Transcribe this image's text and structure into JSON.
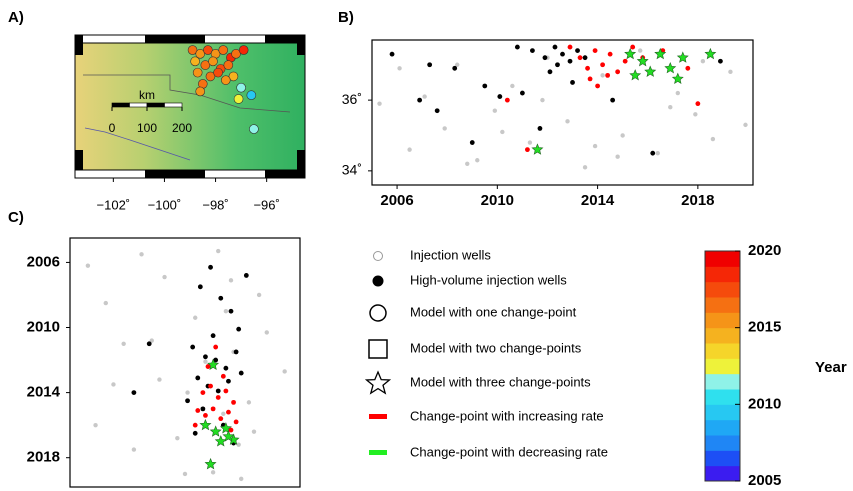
{
  "chart_data": [
    {
      "type": "map",
      "panel": "A)",
      "xlim": [
        -103.5,
        -94.5
      ],
      "ylim": [
        33.5,
        37.3
      ],
      "xticks": [
        {
          "value": -102,
          "label": "−102˚"
        },
        {
          "value": -100,
          "label": "−100˚"
        },
        {
          "value": -98,
          "label": "−98˚"
        },
        {
          "value": -96,
          "label": "−96˚"
        }
      ],
      "scale_label": "km",
      "scale_ticks": [
        0,
        100,
        200
      ],
      "points": {
        "x": [
          -98.9,
          -98.6,
          -98.3,
          -98.0,
          -97.7,
          -97.4,
          -97.2,
          -98.8,
          -98.4,
          -98.1,
          -97.8,
          -97.5,
          -98.7,
          -98.2,
          -97.9,
          -97.3,
          -98.5,
          -97.6,
          -96.9,
          -97.0,
          -96.6,
          -97.1,
          -98.6,
          -96.5
        ],
        "y": [
          36.9,
          36.8,
          36.9,
          36.8,
          36.9,
          36.7,
          36.8,
          36.6,
          36.5,
          36.6,
          36.4,
          36.5,
          36.3,
          36.2,
          36.3,
          36.2,
          36.0,
          36.1,
          36.9,
          35.9,
          35.7,
          35.6,
          35.8,
          34.8
        ],
        "year": [
          2016,
          2015,
          2017,
          2015,
          2016,
          2018,
          2016,
          2014,
          2016,
          2015,
          2017,
          2016,
          2015,
          2016,
          2017,
          2014,
          2016,
          2015,
          2018,
          2011,
          2009,
          2012,
          2015,
          2011
        ]
      }
    },
    {
      "type": "scatter",
      "panel": "B)",
      "xlim": [
        2005,
        2020.2
      ],
      "ylim": [
        33.6,
        37.7
      ],
      "xticks": [
        2006,
        2010,
        2014,
        2018
      ],
      "yticks": [
        {
          "value": 34,
          "label": "34˚"
        },
        {
          "value": 36,
          "label": "36˚"
        }
      ],
      "series": [
        {
          "color": "#c8c8c8",
          "marker": "dot",
          "x": [
            2005.3,
            2005.8,
            2006.5,
            2007.1,
            2007.9,
            2008.4,
            2009.2,
            2009.9,
            2010.6,
            2011.3,
            2012.0,
            2012.8,
            2013.5,
            2014.2,
            2015.0,
            2015.7,
            2016.4,
            2017.2,
            2017.9,
            2018.6,
            2019.3,
            2019.9,
            2006.1,
            2008.8,
            2011.8,
            2013.9,
            2016.9,
            2018.2,
            2010.2,
            2014.8
          ],
          "y": [
            35.9,
            37.3,
            34.6,
            36.1,
            35.2,
            37.0,
            34.3,
            35.7,
            36.4,
            34.8,
            37.2,
            35.4,
            34.1,
            36.7,
            35.0,
            37.4,
            34.5,
            36.2,
            35.6,
            34.9,
            36.8,
            35.3,
            36.9,
            34.2,
            36.0,
            34.7,
            35.8,
            37.1,
            35.1,
            34.4
          ]
        },
        {
          "color": "#000000",
          "marker": "dot",
          "x": [
            2005.8,
            2006.9,
            2007.6,
            2008.3,
            2009.5,
            2010.1,
            2010.8,
            2011.4,
            2011.9,
            2012.3,
            2012.6,
            2012.9,
            2013.2,
            2013.5,
            2012.1,
            2011.7,
            2013.0,
            2009.0,
            2007.3,
            2014.6,
            2016.2,
            2018.9,
            2012.4,
            2011.0
          ],
          "y": [
            37.3,
            36.0,
            35.7,
            36.9,
            36.4,
            36.1,
            37.5,
            37.4,
            37.2,
            37.5,
            37.3,
            37.1,
            37.4,
            37.2,
            36.8,
            35.2,
            36.5,
            34.8,
            37.0,
            36.0,
            34.5,
            37.1,
            37.0,
            36.2
          ]
        },
        {
          "color": "#ff0000",
          "marker": "dot",
          "x": [
            2012.9,
            2013.3,
            2013.6,
            2013.9,
            2014.2,
            2014.5,
            2014.8,
            2015.1,
            2015.4,
            2013.7,
            2014.0,
            2014.4,
            2015.8,
            2017.6,
            2018.0,
            2010.4,
            2011.2,
            2016.6
          ],
          "y": [
            37.5,
            37.2,
            36.9,
            37.4,
            37.0,
            37.3,
            36.8,
            37.1,
            37.5,
            36.6,
            36.4,
            36.7,
            37.2,
            36.9,
            35.9,
            36.0,
            34.6,
            37.4
          ]
        },
        {
          "color": "#22dd22",
          "marker": "star",
          "x": [
            2015.3,
            2015.8,
            2016.1,
            2016.5,
            2016.9,
            2017.4,
            2015.5,
            2017.2,
            2018.5,
            2011.6
          ],
          "y": [
            37.3,
            37.1,
            36.8,
            37.3,
            36.9,
            37.2,
            36.7,
            36.6,
            37.3,
            34.6
          ]
        }
      ]
    },
    {
      "type": "scatter",
      "panel": "C)",
      "xlim": [
        -103.5,
        -94.5
      ],
      "ylim": [
        2004.5,
        2019.8
      ],
      "y_reversed": true,
      "yticks": [
        2006,
        2010,
        2014,
        2018
      ],
      "series": [
        {
          "color": "#c8c8c8",
          "marker": "dot",
          "x": [
            -102.8,
            -102.1,
            -101.4,
            -100.7,
            -100.0,
            -99.3,
            -98.6,
            -97.9,
            -97.2,
            -96.5,
            -95.8,
            -95.1,
            -102.5,
            -101.0,
            -99.8,
            -98.2,
            -97.5,
            -96.8,
            -96.1,
            -100.3,
            -97.7,
            -96.9,
            -98.9,
            -101.8,
            -97.1,
            -96.3,
            -99.0,
            -97.4
          ],
          "y": [
            2006.2,
            2008.5,
            2011.0,
            2005.5,
            2013.2,
            2016.8,
            2009.4,
            2018.9,
            2007.1,
            2014.6,
            2010.3,
            2012.7,
            2016.0,
            2017.5,
            2006.9,
            2012.1,
            2015.3,
            2019.3,
            2008.0,
            2010.8,
            2005.3,
            2017.2,
            2014.0,
            2013.5,
            2011.5,
            2016.4,
            2019.0,
            2009.0
          ]
        },
        {
          "color": "#000000",
          "marker": "dot",
          "x": [
            -98.4,
            -98.0,
            -97.6,
            -97.2,
            -96.9,
            -98.7,
            -98.2,
            -97.8,
            -97.4,
            -97.0,
            -98.5,
            -98.1,
            -97.7,
            -97.3,
            -96.8,
            -98.9,
            -98.3,
            -97.5,
            -101.0,
            -100.4,
            -98.6,
            -97.1,
            -97.9,
            -96.6
          ],
          "y": [
            2007.5,
            2006.3,
            2008.2,
            2009.0,
            2010.1,
            2011.2,
            2011.8,
            2012.0,
            2012.5,
            2011.5,
            2013.1,
            2013.6,
            2013.9,
            2013.3,
            2012.8,
            2014.5,
            2015.0,
            2016.0,
            2014.0,
            2011.0,
            2016.5,
            2017.1,
            2010.5,
            2006.8
          ]
        },
        {
          "color": "#ff0000",
          "marker": "dot",
          "x": [
            -98.3,
            -98.0,
            -97.7,
            -97.4,
            -97.1,
            -98.5,
            -98.2,
            -97.9,
            -97.6,
            -97.3,
            -98.1,
            -97.8,
            -97.5,
            -97.2,
            -98.6,
            -97.0
          ],
          "y": [
            2014.0,
            2013.6,
            2014.3,
            2013.9,
            2014.6,
            2015.1,
            2015.4,
            2015.0,
            2015.6,
            2015.2,
            2012.4,
            2011.2,
            2013.0,
            2016.3,
            2016.0,
            2015.8
          ]
        },
        {
          "color": "#22dd22",
          "marker": "star",
          "x": [
            -98.2,
            -97.8,
            -97.4,
            -97.1,
            -97.6,
            -98.0,
            -97.3,
            -97.9
          ],
          "y": [
            2016.0,
            2016.4,
            2016.2,
            2016.9,
            2017.0,
            2018.4,
            2016.7,
            2012.3
          ]
        }
      ]
    },
    {
      "type": "colorbar",
      "ylim": [
        2005,
        2020
      ],
      "yticks": [
        2005,
        2010,
        2015,
        2020
      ],
      "label": "Year",
      "colors": [
        "#3b1cf0",
        "#1d4ff5",
        "#1f86f5",
        "#1fa8f5",
        "#27c8f2",
        "#2fe0ee",
        "#8ff2e8",
        "#eef23a",
        "#f5d52a",
        "#f5b21f",
        "#f59418",
        "#f57012",
        "#f54b0c",
        "#f52706",
        "#f00000"
      ]
    }
  ],
  "legend": [
    {
      "label": "Injection wells",
      "marker": "ring"
    },
    {
      "label": "High-volume injection wells",
      "marker": "dot"
    },
    {
      "label": "Model with one change-point",
      "marker": "circle"
    },
    {
      "label": "Model with two change-points",
      "marker": "square"
    },
    {
      "label": "Model with three change-points",
      "marker": "star"
    },
    {
      "label": "Change-point with increasing rate",
      "marker": "red-bar"
    },
    {
      "label": "Change-point with decreasing rate",
      "marker": "green-bar"
    }
  ]
}
